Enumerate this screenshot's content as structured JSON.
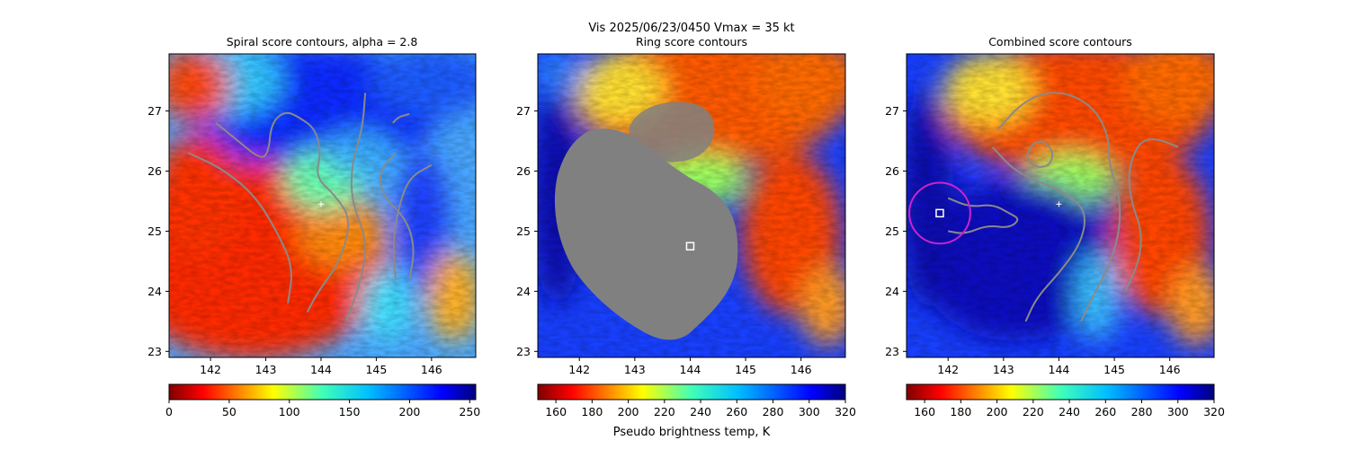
{
  "suptitle": "Vis  2025/06/23/0450    Vmax = 35 kt",
  "colorbar_label": "Pseudo brightness temp, K",
  "colors": {
    "contour": "#8a8a8a",
    "marker": "#ffffff",
    "circle": "#cc22cc",
    "mask": "#808080"
  },
  "chart_data": [
    {
      "type": "heatmap",
      "title": "Spiral score contours, alpha =  2.8",
      "xlim": [
        141.25,
        146.8
      ],
      "ylim": [
        22.9,
        27.95
      ],
      "xticks": [
        "142",
        "143",
        "144",
        "145",
        "146"
      ],
      "yticks": [
        "23",
        "24",
        "25",
        "26",
        "27"
      ],
      "colormap": "jet_r",
      "colorbar": {
        "range": [
          0,
          255
        ],
        "ticks": [
          "0",
          "50",
          "100",
          "150",
          "200",
          "250"
        ]
      },
      "markers": [
        {
          "type": "plus",
          "lon": 144.0,
          "lat": 25.45
        }
      ],
      "contours": [
        [
          [
            141.6,
            26.3
          ],
          [
            142.2,
            26.05
          ],
          [
            142.8,
            25.6
          ],
          [
            143.2,
            25.0
          ],
          [
            143.5,
            24.4
          ],
          [
            143.4,
            23.8
          ]
        ],
        [
          [
            142.1,
            26.8
          ],
          [
            142.5,
            26.5
          ],
          [
            142.9,
            26.2
          ],
          [
            143.05,
            26.3
          ],
          [
            143.1,
            26.8
          ],
          [
            143.35,
            27.0
          ],
          [
            143.6,
            26.9
          ],
          [
            143.9,
            26.7
          ],
          [
            144.0,
            26.3
          ],
          [
            143.9,
            25.9
          ],
          [
            144.25,
            25.6
          ],
          [
            144.55,
            25.2
          ],
          [
            144.35,
            24.5
          ],
          [
            143.95,
            24.0
          ],
          [
            143.75,
            23.65
          ]
        ],
        [
          [
            144.8,
            27.3
          ],
          [
            144.75,
            26.7
          ],
          [
            144.55,
            26.1
          ],
          [
            144.55,
            25.5
          ],
          [
            144.85,
            24.8
          ],
          [
            144.7,
            24.1
          ],
          [
            144.45,
            23.5
          ]
        ],
        [
          [
            145.35,
            26.3
          ],
          [
            145.05,
            26.0
          ],
          [
            145.1,
            25.6
          ],
          [
            145.55,
            25.2
          ],
          [
            145.7,
            24.7
          ],
          [
            145.6,
            24.2
          ]
        ],
        [
          [
            146.0,
            26.1
          ],
          [
            145.6,
            25.9
          ],
          [
            145.4,
            25.4
          ],
          [
            145.3,
            24.8
          ],
          [
            145.35,
            24.2
          ]
        ],
        [
          [
            145.3,
            26.8
          ],
          [
            145.4,
            26.9
          ],
          [
            145.6,
            26.95
          ]
        ]
      ]
    },
    {
      "type": "heatmap",
      "title": "Ring score contours",
      "xlim": [
        141.25,
        146.8
      ],
      "ylim": [
        22.9,
        27.95
      ],
      "xticks": [
        "142",
        "143",
        "144",
        "145",
        "146"
      ],
      "yticks": [
        "23",
        "24",
        "25",
        "26",
        "27"
      ],
      "colormap": "jet_r",
      "colorbar": {
        "range": [
          150,
          320
        ],
        "ticks": [
          "160",
          "180",
          "200",
          "220",
          "240",
          "260",
          "280",
          "300",
          "320"
        ]
      },
      "markers": [
        {
          "type": "square",
          "lon": 144.0,
          "lat": 24.75
        }
      ],
      "masked_region": "filled ring-score contour"
    },
    {
      "type": "heatmap",
      "title": "Combined score contours",
      "xlim": [
        141.25,
        146.8
      ],
      "ylim": [
        22.9,
        27.95
      ],
      "xticks": [
        "142",
        "143",
        "144",
        "145",
        "146"
      ],
      "yticks": [
        "23",
        "24",
        "25",
        "26",
        "27"
      ],
      "colormap": "jet_r",
      "colorbar": {
        "range": [
          150,
          320
        ],
        "ticks": [
          "160",
          "180",
          "200",
          "220",
          "240",
          "260",
          "280",
          "300",
          "320"
        ]
      },
      "markers": [
        {
          "type": "square",
          "lon": 141.85,
          "lat": 25.3
        },
        {
          "type": "plus",
          "lon": 144.0,
          "lat": 25.45
        }
      ],
      "circle": {
        "lon": 141.85,
        "lat": 25.3,
        "radius_deg": 0.55
      },
      "contours": [
        [
          [
            142.9,
            26.7
          ],
          [
            143.4,
            27.2
          ],
          [
            144.0,
            27.35
          ],
          [
            144.6,
            27.1
          ],
          [
            144.9,
            26.6
          ],
          [
            144.9,
            26.1
          ],
          [
            145.1,
            25.6
          ],
          [
            145.1,
            25.0
          ],
          [
            144.9,
            24.4
          ],
          [
            144.6,
            23.9
          ],
          [
            144.4,
            23.5
          ]
        ],
        [
          [
            143.7,
            26.5
          ],
          [
            143.9,
            26.35
          ],
          [
            143.85,
            26.1
          ],
          [
            143.6,
            26.05
          ],
          [
            143.4,
            26.2
          ],
          [
            143.5,
            26.45
          ],
          [
            143.7,
            26.5
          ]
        ],
        [
          [
            142.8,
            26.4
          ],
          [
            143.2,
            26.0
          ],
          [
            143.7,
            25.8
          ],
          [
            144.2,
            25.6
          ],
          [
            144.5,
            25.3
          ],
          [
            144.4,
            24.8
          ],
          [
            144.0,
            24.3
          ],
          [
            143.6,
            23.9
          ],
          [
            143.4,
            23.5
          ]
        ],
        [
          [
            142.0,
            25.55
          ],
          [
            142.4,
            25.4
          ],
          [
            142.8,
            25.45
          ],
          [
            143.1,
            25.3
          ],
          [
            143.3,
            25.2
          ],
          [
            143.1,
            25.05
          ],
          [
            142.7,
            25.1
          ],
          [
            142.3,
            24.95
          ],
          [
            142.0,
            25.0
          ]
        ],
        [
          [
            146.15,
            26.4
          ],
          [
            145.9,
            26.5
          ],
          [
            145.6,
            26.55
          ],
          [
            145.4,
            26.4
          ],
          [
            145.25,
            26.0
          ],
          [
            145.3,
            25.5
          ],
          [
            145.5,
            25.0
          ],
          [
            145.45,
            24.5
          ],
          [
            145.2,
            24.0
          ]
        ]
      ]
    }
  ]
}
